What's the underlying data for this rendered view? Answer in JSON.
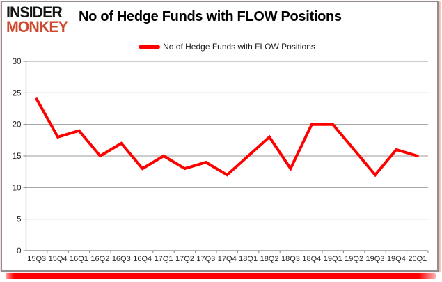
{
  "logo": {
    "line1": "INSIDER",
    "line2": "MONKEY"
  },
  "header": {
    "title": "No of Hedge Funds with FLOW Positions"
  },
  "legend": {
    "label": "No of Hedge Funds with FLOW Positions"
  },
  "colors": {
    "series_red": "#fe0000",
    "logo_black": "#141414",
    "logo_orange": "#ce4b31",
    "gridline": "#9b9b9b",
    "axis": "#7f7f7f",
    "tick_label": "#262626",
    "bottom_bar": "#fe0000",
    "side_glow": "#f2bdb4"
  },
  "chart_data": {
    "type": "line",
    "title": "No of Hedge Funds with FLOW Positions",
    "xlabel": "",
    "ylabel": "",
    "ylim": [
      0,
      30
    ],
    "ytick_step": 5,
    "grid": true,
    "legend_position": "top-center",
    "legend_entries": [
      "No of Hedge Funds with FLOW Positions"
    ],
    "categories": [
      "15Q3",
      "15Q4",
      "16Q1",
      "16Q2",
      "16Q3",
      "16Q4",
      "17Q1",
      "17Q2",
      "17Q3",
      "17Q4",
      "18Q1",
      "18Q2",
      "18Q3",
      "18Q4",
      "19Q1",
      "19Q2",
      "19Q3",
      "19Q4",
      "20Q1"
    ],
    "series": [
      {
        "name": "No of Hedge Funds with FLOW Positions",
        "color": "#fe0000",
        "values": [
          24,
          18,
          19,
          15,
          17,
          13,
          15,
          13,
          14,
          12,
          15,
          18,
          13,
          20,
          20,
          16,
          12,
          16,
          15
        ]
      }
    ]
  }
}
